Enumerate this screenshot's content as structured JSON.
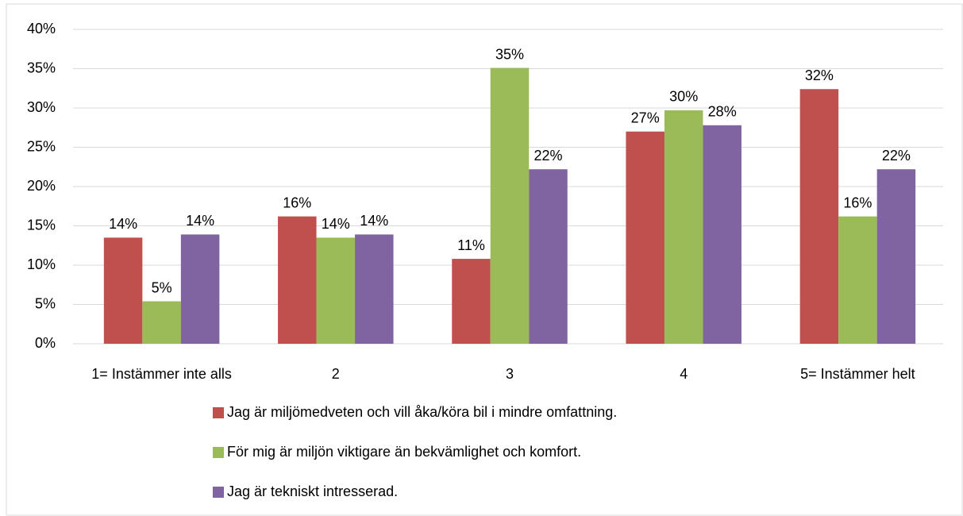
{
  "chart_data": {
    "type": "bar",
    "categories": [
      "1= Instämmer inte alls",
      "2",
      "3",
      "4",
      "5= Instämmer helt"
    ],
    "series": [
      {
        "name": "Jag är miljömedveten och vill åka/köra bil i mindre omfattning.",
        "color": "#c0504d",
        "values": [
          13.5,
          16.2,
          10.8,
          27.0,
          32.4
        ],
        "value_labels": [
          "14%",
          "16%",
          "11%",
          "27%",
          "32%"
        ]
      },
      {
        "name": "För mig är miljön viktigare än bekvämlighet och komfort.",
        "color": "#9bbb59",
        "values": [
          5.4,
          13.5,
          35.1,
          29.7,
          16.2
        ],
        "value_labels": [
          "5%",
          "14%",
          "35%",
          "30%",
          "16%"
        ]
      },
      {
        "name": "Jag är tekniskt intresserad.",
        "color": "#8064a2",
        "values": [
          13.9,
          13.9,
          22.2,
          27.8,
          22.2
        ],
        "value_labels": [
          "14%",
          "14%",
          "22%",
          "28%",
          "22%"
        ]
      }
    ],
    "ylim": [
      0,
      40
    ],
    "yticks": [
      {
        "value": 0,
        "label": "0%"
      },
      {
        "value": 5,
        "label": "5%"
      },
      {
        "value": 10,
        "label": "10%"
      },
      {
        "value": 15,
        "label": "15%"
      },
      {
        "value": 20,
        "label": "20%"
      },
      {
        "value": 25,
        "label": "25%"
      },
      {
        "value": 30,
        "label": "30%"
      },
      {
        "value": 35,
        "label": "35%"
      },
      {
        "value": 40,
        "label": "40%"
      }
    ],
    "grid": true
  }
}
